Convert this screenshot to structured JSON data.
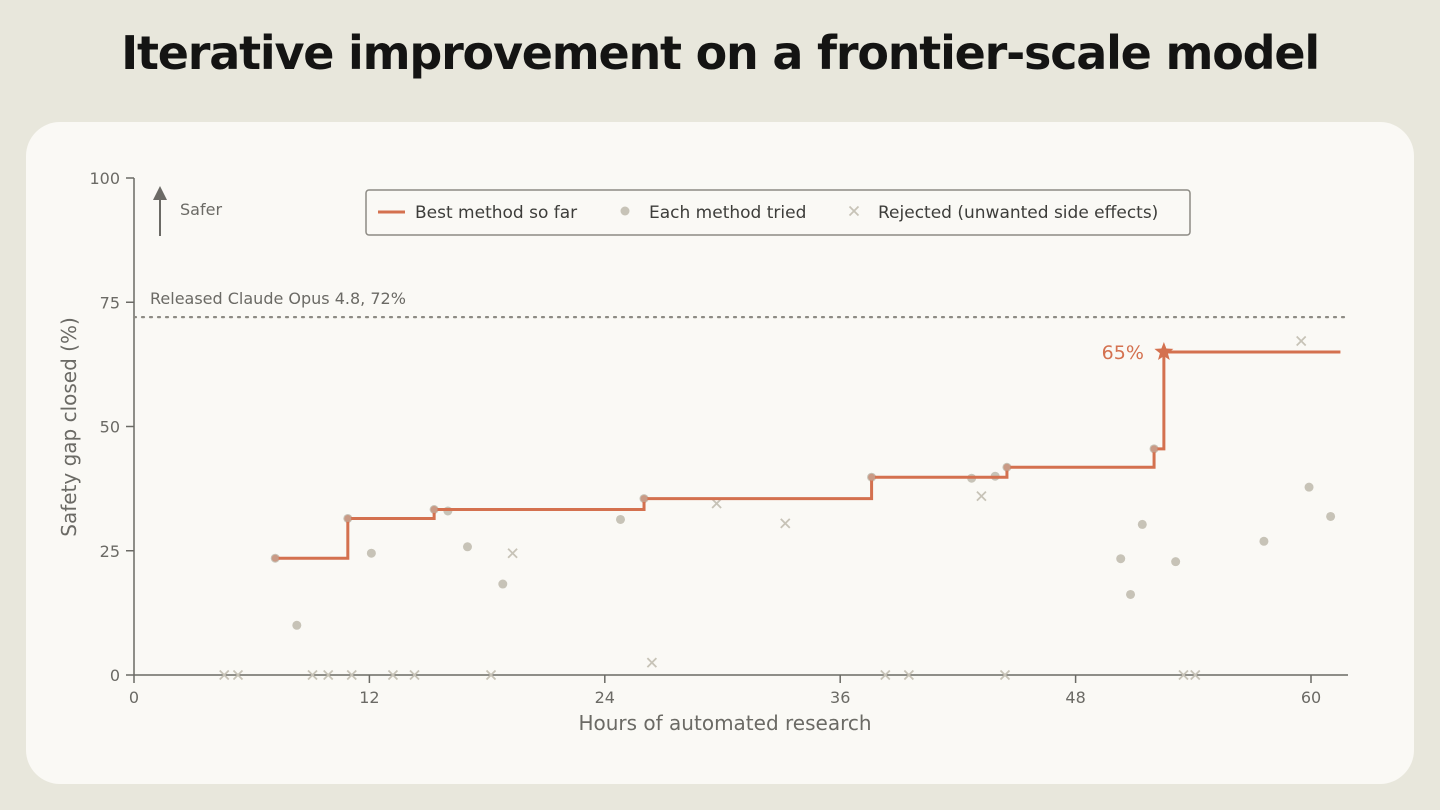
{
  "page": {
    "title": "Iterative improvement on a frontier-scale model"
  },
  "chart_data": {
    "type": "line",
    "xlabel": "Hours of automated research",
    "ylabel": "Safety gap closed (%)",
    "xlim": [
      0,
      62
    ],
    "ylim": [
      0,
      100
    ],
    "x_ticks": [
      0,
      12,
      24,
      36,
      48,
      60
    ],
    "y_ticks": [
      0,
      25,
      50,
      75,
      100
    ],
    "direction_label": "Safer",
    "legend": {
      "placement": "top-center",
      "entries": [
        "Best method so far",
        "Each method tried",
        "Rejected (unwanted side effects)"
      ]
    },
    "reference_line": {
      "y": 72,
      "label": "Released Claude Opus 4.8, 72%"
    },
    "best_annotation": {
      "x": 52.5,
      "y": 65,
      "label": "65%"
    },
    "best_so_far": {
      "name": "Best method so far",
      "x": [
        7.2,
        10.9,
        15.3,
        26.0,
        37.6,
        44.5,
        52.0,
        52.5,
        61.5
      ],
      "y": [
        23.5,
        31.5,
        33.3,
        35.5,
        39.8,
        41.8,
        45.5,
        65,
        65
      ]
    },
    "methods_tried": {
      "name": "Each method tried",
      "x": [
        7.2,
        8.3,
        10.9,
        12.1,
        15.3,
        16.0,
        17.0,
        18.8,
        24.8,
        26.0,
        37.6,
        42.7,
        43.9,
        44.5,
        50.3,
        50.8,
        51.4,
        52.0,
        53.1,
        57.6,
        59.9,
        61.0
      ],
      "y": [
        23.5,
        10,
        31.5,
        24.5,
        33.3,
        33,
        25.8,
        18.3,
        31.3,
        35.5,
        39.8,
        39.6,
        40,
        41.8,
        23.4,
        16.2,
        30.3,
        45.5,
        22.8,
        26.9,
        37.8,
        31.9
      ]
    },
    "rejected": {
      "name": "Rejected (unwanted side effects)",
      "x": [
        4.6,
        5.3,
        9.1,
        9.9,
        11.1,
        13.2,
        14.3,
        18.2,
        19.3,
        26.4,
        29.7,
        33.2,
        38.3,
        39.5,
        43.2,
        44.4,
        53.5,
        54.1,
        59.5
      ],
      "y": [
        0,
        0,
        0,
        0,
        0,
        0,
        0,
        0,
        24.5,
        2.5,
        34.5,
        30.5,
        0,
        0,
        36,
        0,
        0,
        0,
        67.2
      ]
    },
    "colors": {
      "best": "#d4714f",
      "tried": "#c7c3b7",
      "rejected": "#c7c3b7",
      "reference": "#8d8b84",
      "axis": "#6b6a65"
    },
    "grid": false
  }
}
